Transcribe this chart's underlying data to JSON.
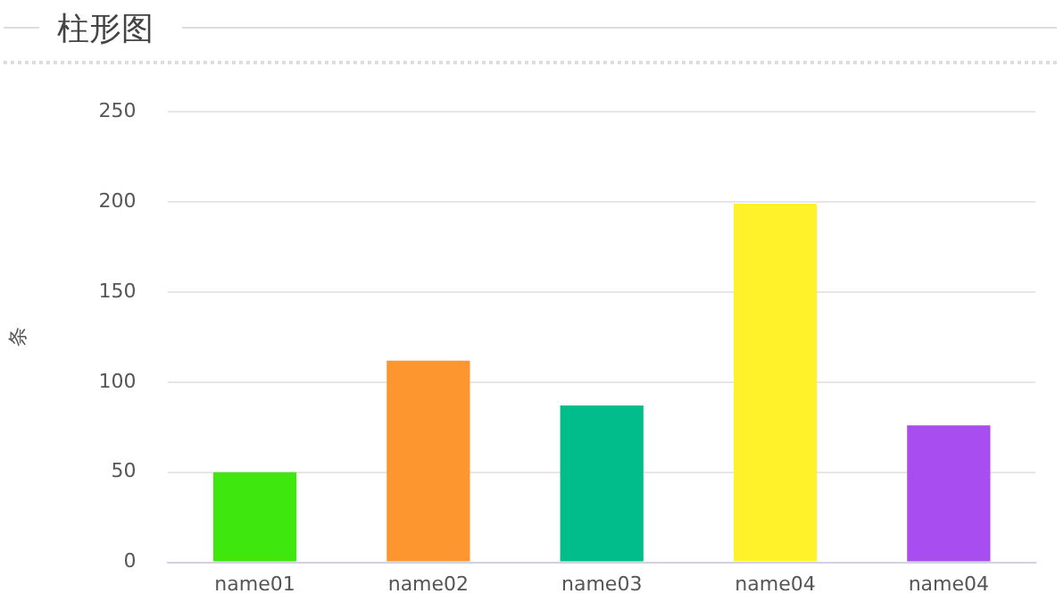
{
  "chart_data": {
    "type": "bar",
    "title": "柱形图",
    "ylabel": "条",
    "categories": [
      "name01",
      "name02",
      "name03",
      "name04",
      "name04"
    ],
    "values": [
      50,
      112,
      87,
      199,
      76
    ],
    "colors": [
      "#3ee80f",
      "#fe9630",
      "#00bd8b",
      "#fff12a",
      "#a84df0"
    ],
    "ylim": [
      0,
      250
    ],
    "yticks": [
      0,
      50,
      100,
      150,
      200,
      250
    ],
    "grid": "y",
    "legend": false
  }
}
